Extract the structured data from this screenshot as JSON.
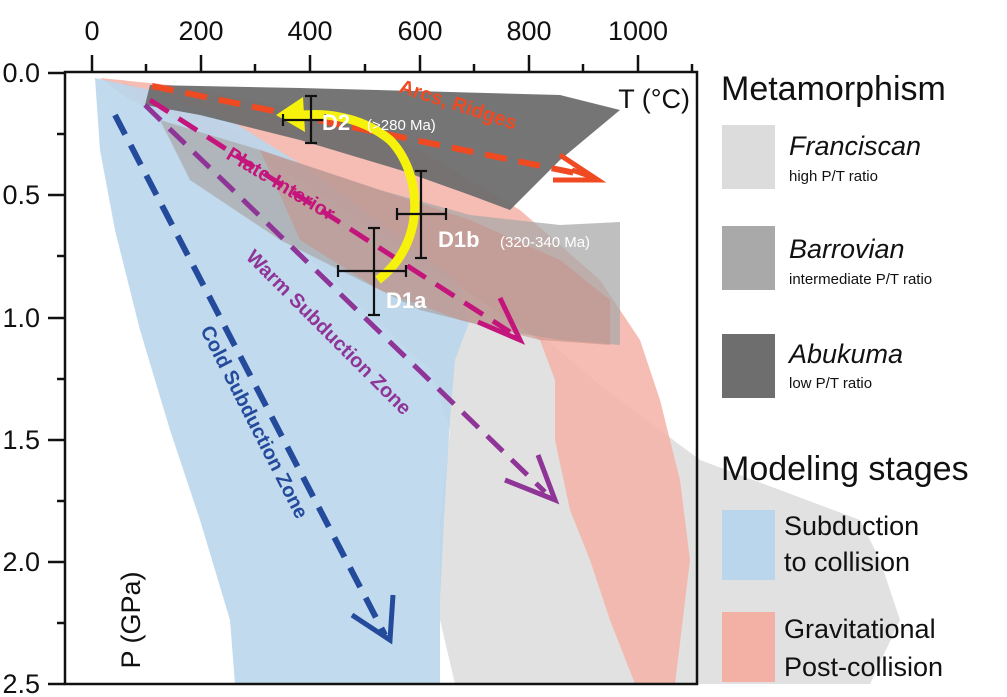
{
  "axes": {
    "x_ticks": [
      "0",
      "200",
      "400",
      "600",
      "800",
      "1000"
    ],
    "y_ticks": [
      "0.0",
      "0.5",
      "1.0",
      "1.5",
      "2.0",
      "2.5"
    ],
    "x_title": "T (°C)",
    "y_title": "P (GPa)"
  },
  "paths": {
    "arcs": "Arcs, Ridges",
    "plate": "Plate Interior",
    "warm": "Warm Subduction Zone",
    "cold": "Cold Subduction Zone"
  },
  "stages": {
    "d2": "D2",
    "d2_age": "(>280 Ma)",
    "d1b": "D1b",
    "d1b_age": "(320-340 Ma)",
    "d1a": "D1a"
  },
  "legend": {
    "metamorphism_title": "Metamorphism",
    "franciscan": "Franciscan",
    "franciscan_sub": "high P/T ratio",
    "barrovian": "Barrovian",
    "barrovian_sub": "intermediate P/T ratio",
    "abukuma": "Abukuma",
    "abukuma_sub": "low P/T ratio",
    "modeling_title": "Modeling stages",
    "subduction_l1": "Subduction",
    "subduction_l2": "to collision",
    "gravitational_l1": "Gravitational",
    "gravitational_l2": "Post-collision"
  },
  "colors": {
    "franciscan": "#dcdcdc",
    "barrovian": "#a9a9a9",
    "abukuma": "#6e6e6e",
    "subduction": "#bad6ec",
    "gravitational": "#f3b1a6",
    "arcs": "#f04a23",
    "plate": "#c4157c",
    "warm": "#8e3597",
    "cold": "#244a9c",
    "ptpath": "#f6f20c"
  },
  "icons": [
    "dashed-arrow",
    "curved-arrow",
    "error-bar-cross"
  ]
}
